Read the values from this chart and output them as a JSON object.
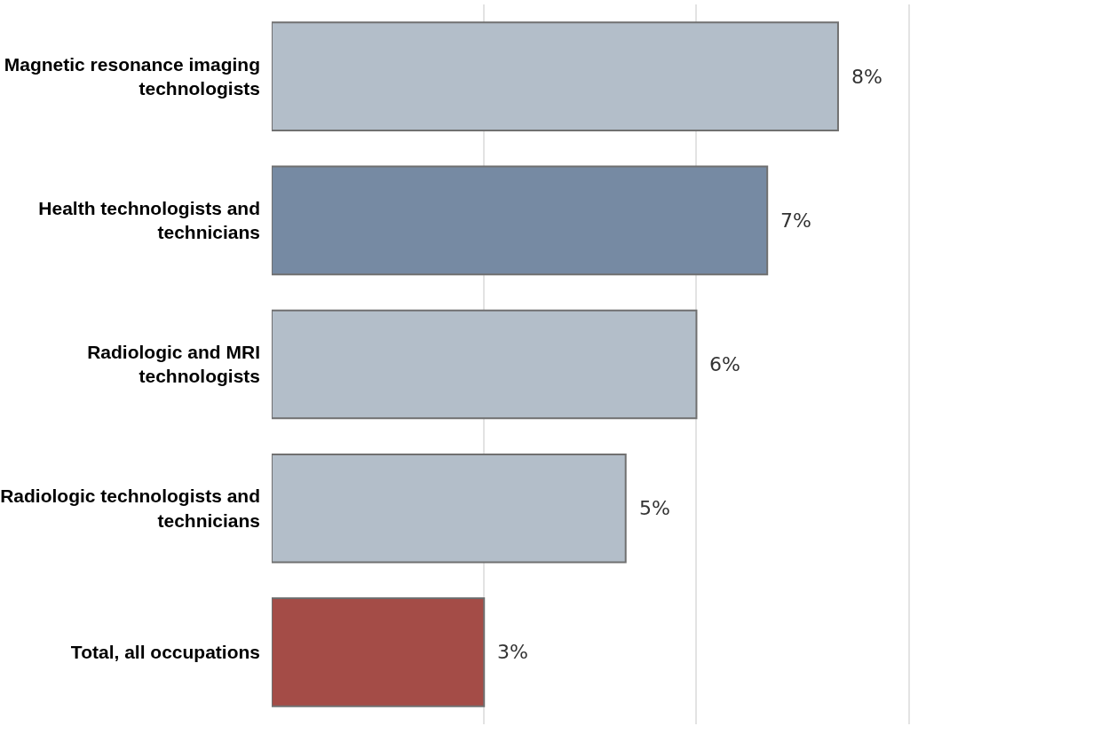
{
  "chart_data": {
    "type": "bar",
    "orientation": "horizontal",
    "categories": [
      "Magnetic resonance imaging technologists",
      "Health technologists and technicians",
      "Radiologic and MRI technologists",
      "Radiologic technologists and technicians",
      "Total, all occupations"
    ],
    "values": [
      8,
      7,
      6,
      5,
      3
    ],
    "colors": [
      "#b3bec9",
      "#768aa3",
      "#b3bec9",
      "#b3bec9",
      "#a44c47"
    ],
    "value_labels": [
      "8%",
      "7%",
      "6%",
      "5%",
      "3%"
    ],
    "xlim": [
      0,
      11.7
    ],
    "xticks": [
      {
        "value": 3,
        "label": null
      },
      {
        "value": 6,
        "label": null
      },
      {
        "value": 9,
        "label": null
      }
    ],
    "grid": "x",
    "legend": false
  }
}
